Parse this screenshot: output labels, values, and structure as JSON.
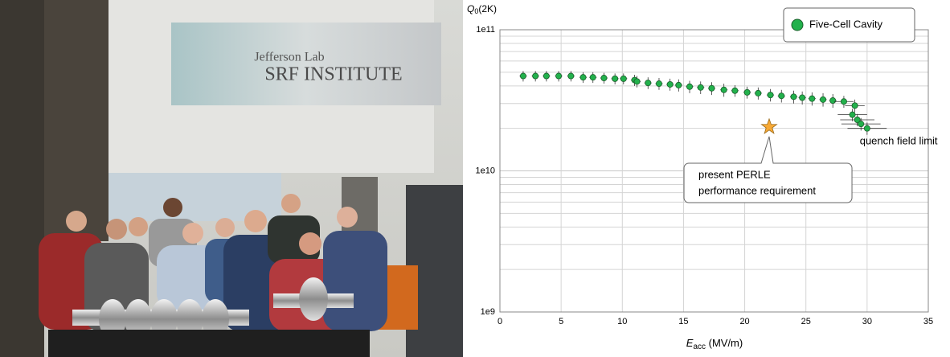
{
  "photo": {
    "sign_line1": "Jefferson Lab",
    "sign_line2": "SRF INSTITUTE"
  },
  "chart_data": {
    "type": "scatter",
    "log_y": true,
    "grid": true,
    "ylabel": [
      "Q",
      "0",
      "(2K)"
    ],
    "xlabel": [
      "E",
      "acc",
      " (MV/m)"
    ],
    "xlim": [
      0,
      35
    ],
    "xticks": [
      0,
      5,
      10,
      15,
      20,
      25,
      30,
      35
    ],
    "ylim": [
      1000000000.0,
      100000000000.0
    ],
    "yticks": [
      {
        "value": 1000000000.0,
        "label": "1e9"
      },
      {
        "value": 10000000000.0,
        "label": "1e10"
      },
      {
        "value": 100000000000.0,
        "label": "1e11"
      }
    ],
    "y_minor_ticks": [
      2000000000.0,
      3000000000.0,
      4000000000.0,
      5000000000.0,
      6000000000.0,
      7000000000.0,
      8000000000.0,
      9000000000.0,
      20000000000.0,
      30000000000.0,
      40000000000.0,
      50000000000.0,
      60000000000.0,
      70000000000.0,
      80000000000.0,
      90000000000.0
    ],
    "legend": "top-right",
    "series": [
      {
        "name": "Five-Cell Cavity",
        "color": "#22b14c",
        "x": [
          1.9,
          2.9,
          3.8,
          4.8,
          5.8,
          6.8,
          7.6,
          8.5,
          9.4,
          10.1,
          11.0,
          11.2,
          12.1,
          13.0,
          13.9,
          14.6,
          15.5,
          16.4,
          17.3,
          18.3,
          19.2,
          20.2,
          21.1,
          22.1,
          23.0,
          24.0,
          24.7,
          25.5,
          26.4,
          27.2,
          28.1,
          29.0,
          28.8,
          29.2,
          29.5,
          30.0
        ],
        "values": [
          47000000000.0,
          47000000000.0,
          47000000000.0,
          47000000000.0,
          47000000000.0,
          46000000000.0,
          46000000000.0,
          45500000000.0,
          45000000000.0,
          45000000000.0,
          44000000000.0,
          43000000000.0,
          42000000000.0,
          41500000000.0,
          41000000000.0,
          40500000000.0,
          39500000000.0,
          39000000000.0,
          38500000000.0,
          37500000000.0,
          37000000000.0,
          36000000000.0,
          35500000000.0,
          34500000000.0,
          34000000000.0,
          33500000000.0,
          33000000000.0,
          32500000000.0,
          32000000000.0,
          31500000000.0,
          31000000000.0,
          29000000000.0,
          25000000000.0,
          23000000000.0,
          21500000000.0,
          20000000000.0
        ],
        "x_err": [
          0.3,
          0.3,
          0.3,
          0.3,
          0.3,
          0.3,
          0.3,
          0.3,
          0.3,
          0.3,
          0.3,
          0.3,
          0.3,
          0.3,
          0.3,
          0.3,
          0.3,
          0.3,
          0.3,
          0.3,
          0.3,
          0.3,
          0.3,
          0.3,
          0.3,
          0.3,
          0.3,
          0.3,
          0.3,
          0.3,
          0.8,
          0.8,
          1.2,
          1.4,
          1.6,
          1.6
        ],
        "y_err": [
          4000000000.0,
          4000000000.0,
          4000000000.0,
          4000000000.0,
          4000000000.0,
          4000000000.0,
          4000000000.0,
          4000000000.0,
          4000000000.0,
          4000000000.0,
          4000000000.0,
          4000000000.0,
          4000000000.0,
          4000000000.0,
          4000000000.0,
          4000000000.0,
          4000000000.0,
          4000000000.0,
          4000000000.0,
          4000000000.0,
          3500000000.0,
          3500000000.0,
          3500000000.0,
          3500000000.0,
          3500000000.0,
          3500000000.0,
          3500000000.0,
          3500000000.0,
          3500000000.0,
          3500000000.0,
          3000000000.0,
          3000000000.0,
          2500000000.0,
          2300000000.0,
          2200000000.0,
          2000000000.0
        ]
      }
    ],
    "markers": [
      {
        "x": 22,
        "y": 20500000000.0,
        "color": "#f7a935",
        "label": [
          "present PERLE",
          "performance requirement"
        ]
      }
    ],
    "annotations": [
      "quench field limit"
    ]
  }
}
